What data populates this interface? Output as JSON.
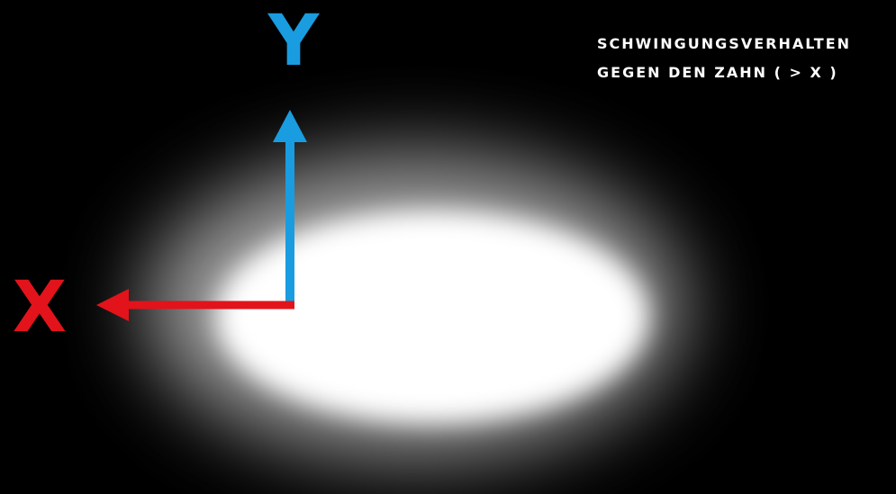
{
  "axes": {
    "y_label": "Y",
    "x_label": "X"
  },
  "caption": {
    "lines": [
      "SCHWINGUNGSVERHALTEN",
      "GEGEN DEN ZAHN ( > X )"
    ]
  }
}
